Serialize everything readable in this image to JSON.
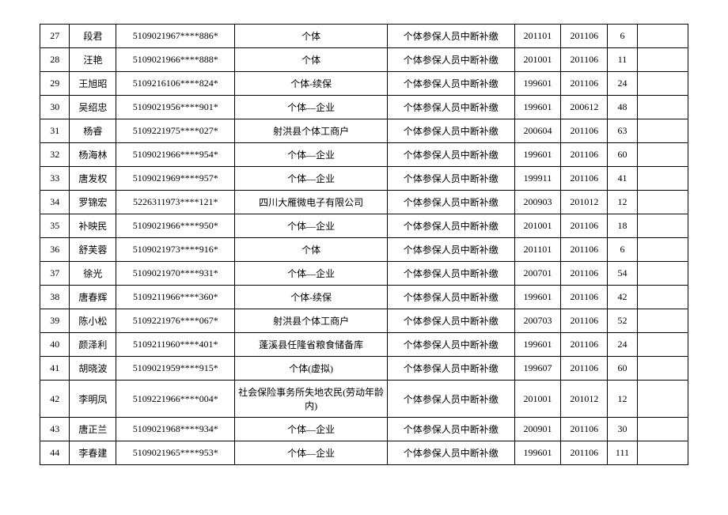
{
  "table": {
    "background_color": "#ffffff",
    "border_color": "#000000",
    "font_size": 12,
    "columns": [
      "idx",
      "name",
      "id",
      "org",
      "type",
      "d1",
      "d2",
      "n",
      "last"
    ],
    "rows": [
      {
        "idx": "27",
        "name": "段君",
        "id": "5109021967****886*",
        "org": "个体",
        "type": "个体参保人员中断补缴",
        "d1": "201101",
        "d2": "201106",
        "n": "6",
        "last": ""
      },
      {
        "idx": "28",
        "name": "汪艳",
        "id": "5109021966****888*",
        "org": "个体",
        "type": "个体参保人员中断补缴",
        "d1": "201001",
        "d2": "201106",
        "n": "11",
        "last": ""
      },
      {
        "idx": "29",
        "name": "王旭昭",
        "id": "5109216106****824*",
        "org": "个体-续保",
        "type": "个体参保人员中断补缴",
        "d1": "199601",
        "d2": "201106",
        "n": "24",
        "last": ""
      },
      {
        "idx": "30",
        "name": "吴绍忠",
        "id": "5109021956****901*",
        "org": "个体—企业",
        "type": "个体参保人员中断补缴",
        "d1": "199601",
        "d2": "200612",
        "n": "48",
        "last": ""
      },
      {
        "idx": "31",
        "name": "杨睿",
        "id": "5109221975****027*",
        "org": "射洪县个体工商户",
        "type": "个体参保人员中断补缴",
        "d1": "200604",
        "d2": "201106",
        "n": "63",
        "last": ""
      },
      {
        "idx": "32",
        "name": "杨海林",
        "id": "5109021966****954*",
        "org": "个体—企业",
        "type": "个体参保人员中断补缴",
        "d1": "199601",
        "d2": "201106",
        "n": "60",
        "last": ""
      },
      {
        "idx": "33",
        "name": "唐发权",
        "id": "5109021969****957*",
        "org": "个体—企业",
        "type": "个体参保人员中断补缴",
        "d1": "199911",
        "d2": "201106",
        "n": "41",
        "last": ""
      },
      {
        "idx": "34",
        "name": "罗锦宏",
        "id": "5226311973****121*",
        "org": "四川大雁微电子有限公司",
        "type": "个体参保人员中断补缴",
        "d1": "200903",
        "d2": "201012",
        "n": "12",
        "last": ""
      },
      {
        "idx": "35",
        "name": "补映民",
        "id": "5109021966****950*",
        "org": "个体—企业",
        "type": "个体参保人员中断补缴",
        "d1": "201001",
        "d2": "201106",
        "n": "18",
        "last": ""
      },
      {
        "idx": "36",
        "name": "舒芙蓉",
        "id": "5109021973****916*",
        "org": "个体",
        "type": "个体参保人员中断补缴",
        "d1": "201101",
        "d2": "201106",
        "n": "6",
        "last": ""
      },
      {
        "idx": "37",
        "name": "徐光",
        "id": "5109021970****931*",
        "org": "个体—企业",
        "type": "个体参保人员中断补缴",
        "d1": "200701",
        "d2": "201106",
        "n": "54",
        "last": ""
      },
      {
        "idx": "38",
        "name": "唐春辉",
        "id": "5109211966****360*",
        "org": "个体-续保",
        "type": "个体参保人员中断补缴",
        "d1": "199601",
        "d2": "201106",
        "n": "42",
        "last": ""
      },
      {
        "idx": "39",
        "name": "陈小松",
        "id": "5109221976****067*",
        "org": "射洪县个体工商户",
        "type": "个体参保人员中断补缴",
        "d1": "200703",
        "d2": "201106",
        "n": "52",
        "last": ""
      },
      {
        "idx": "40",
        "name": "颜泽利",
        "id": "5109211960****401*",
        "org": "蓬溪县任隆省粮食储备库",
        "type": "个体参保人员中断补缴",
        "d1": "199601",
        "d2": "201106",
        "n": "24",
        "last": ""
      },
      {
        "idx": "41",
        "name": "胡晓波",
        "id": "5109021959****915*",
        "org": "个体(虚拟)",
        "type": "个体参保人员中断补缴",
        "d1": "199607",
        "d2": "201106",
        "n": "60",
        "last": ""
      },
      {
        "idx": "42",
        "name": "李明凤",
        "id": "5109221966****004*",
        "org": "社会保险事务所失地农民(劳动年龄内)",
        "type": "个体参保人员中断补缴",
        "d1": "201001",
        "d2": "201012",
        "n": "12",
        "last": ""
      },
      {
        "idx": "43",
        "name": "唐正兰",
        "id": "5109021968****934*",
        "org": "个体—企业",
        "type": "个体参保人员中断补缴",
        "d1": "200901",
        "d2": "201106",
        "n": "30",
        "last": ""
      },
      {
        "idx": "44",
        "name": "李春建",
        "id": "5109021965****953*",
        "org": "个体—企业",
        "type": "个体参保人员中断补缴",
        "d1": "199601",
        "d2": "201106",
        "n": "111",
        "last": ""
      }
    ]
  }
}
